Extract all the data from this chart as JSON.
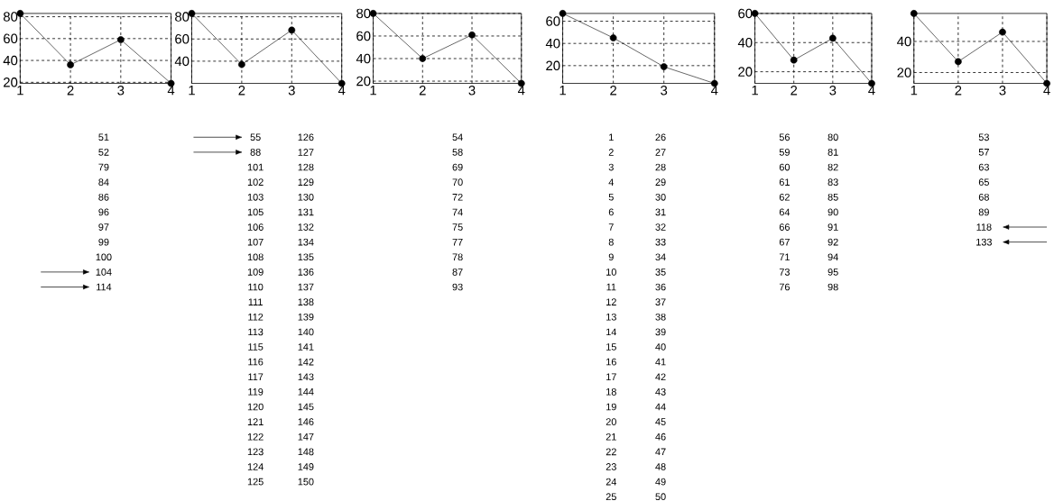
{
  "chart_data": [
    {
      "type": "line",
      "x": [
        1,
        2,
        3,
        4
      ],
      "values": [
        83,
        36,
        59,
        19
      ],
      "color": "#000000",
      "marker": "circle",
      "line_style": "solid",
      "grid": true,
      "xlim": [
        1,
        4
      ],
      "xticks": [
        1,
        2,
        3,
        4
      ],
      "ylim": [
        19,
        83
      ],
      "yticks": [
        20,
        40,
        60,
        80
      ],
      "annotations": [
        "51",
        "52",
        "79",
        "84",
        "86",
        "96",
        "97",
        "99",
        "100",
        "104",
        "114"
      ]
    },
    {
      "type": "line",
      "x": [
        1,
        2,
        3,
        4
      ],
      "values": [
        83,
        37,
        68,
        20
      ],
      "color": "#000000",
      "marker": "circle",
      "line_style": "solid",
      "grid": true,
      "xlim": [
        1,
        4
      ],
      "xticks": [
        1,
        2,
        3,
        4
      ],
      "ylim": [
        20,
        83
      ],
      "yticks": [
        40,
        60,
        80
      ],
      "annotations": [
        "55",
        "88",
        "101",
        "102",
        "103",
        "105",
        "106",
        "107",
        "108",
        "109",
        "110",
        "111",
        "112",
        "113",
        "115",
        "116",
        "117",
        "119",
        "120",
        "121",
        "122",
        "123",
        "124",
        "125",
        "126",
        "127",
        "128",
        "129",
        "130",
        "131",
        "132",
        "134",
        "135",
        "136",
        "137",
        "138",
        "139",
        "140",
        "141",
        "142",
        "143",
        "144",
        "145",
        "146",
        "147",
        "148",
        "149",
        "150"
      ]
    },
    {
      "type": "line",
      "x": [
        1,
        2,
        3,
        4
      ],
      "values": [
        80,
        40,
        61,
        18
      ],
      "color": "#000000",
      "marker": "circle",
      "line_style": "solid",
      "grid": true,
      "xlim": [
        1,
        4
      ],
      "xticks": [
        1,
        2,
        3,
        4
      ],
      "ylim": [
        18,
        80
      ],
      "yticks": [
        20,
        40,
        60,
        80
      ],
      "annotations": [
        "54",
        "58",
        "69",
        "70",
        "72",
        "74",
        "75",
        "77",
        "78",
        "87",
        "93"
      ]
    },
    {
      "type": "line",
      "x": [
        1,
        2,
        3,
        4
      ],
      "values": [
        67,
        45,
        19,
        4
      ],
      "color": "#000000",
      "marker": "circle",
      "line_style": "solid",
      "grid": true,
      "xlim": [
        1,
        4
      ],
      "xticks": [
        1,
        2,
        3,
        4
      ],
      "ylim": [
        4,
        67
      ],
      "yticks": [
        20,
        40,
        60
      ],
      "annotations": [
        "1",
        "2",
        "3",
        "4",
        "5",
        "6",
        "7",
        "8",
        "9",
        "10",
        "11",
        "12",
        "13",
        "14",
        "15",
        "16",
        "17",
        "18",
        "19",
        "20",
        "21",
        "22",
        "23",
        "24",
        "25",
        "26",
        "27",
        "28",
        "29",
        "30",
        "31",
        "32",
        "33",
        "34",
        "35",
        "36",
        "37",
        "38",
        "39",
        "40",
        "41",
        "42",
        "43",
        "44",
        "45",
        "46",
        "47",
        "48",
        "49",
        "50"
      ]
    },
    {
      "type": "line",
      "x": [
        1,
        2,
        3,
        4
      ],
      "values": [
        60,
        28,
        43,
        12
      ],
      "color": "#000000",
      "marker": "circle",
      "line_style": "solid",
      "grid": true,
      "xlim": [
        1,
        4
      ],
      "xticks": [
        1,
        2,
        3,
        4
      ],
      "ylim": [
        12,
        60
      ],
      "yticks": [
        20,
        40,
        60
      ],
      "annotations": [
        "56",
        "59",
        "60",
        "61",
        "62",
        "64",
        "66",
        "67",
        "71",
        "73",
        "76",
        "80",
        "81",
        "82",
        "83",
        "85",
        "90",
        "91",
        "92",
        "94",
        "95",
        "98"
      ]
    },
    {
      "type": "line",
      "x": [
        1,
        2,
        3,
        4
      ],
      "values": [
        58,
        27,
        46,
        13
      ],
      "color": "#000000",
      "marker": "circle",
      "line_style": "solid",
      "grid": true,
      "xlim": [
        1,
        4
      ],
      "xticks": [
        1,
        2,
        3,
        4
      ],
      "ylim": [
        13,
        58
      ],
      "yticks": [
        20,
        40
      ],
      "annotations": [
        "53",
        "57",
        "63",
        "65",
        "68",
        "89",
        "118",
        "133"
      ]
    }
  ]
}
